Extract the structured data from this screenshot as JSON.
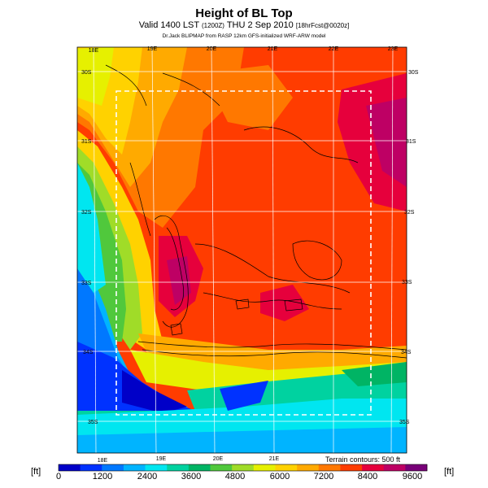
{
  "header": {
    "title": "Height of BL Top",
    "subtitle_main": "Valid 1400 LST",
    "subtitle_small1": "(1200Z)",
    "subtitle_mid": "THU 2 Sep 2010",
    "subtitle_small2": "[18hrFcst@0020z]",
    "credit": "Dr.Jack BLIPMAP from RASP 12km GFS-initialized WRF-ARW model"
  },
  "map": {
    "lon_top": [
      "18E",
      "19E",
      "20E",
      "21E",
      "22E",
      "23E"
    ],
    "lon_bottom": [
      "18E",
      "19E",
      "20E",
      "21E"
    ],
    "lat_left": [
      "30S",
      "31S",
      "32S",
      "33S",
      "34S",
      "35S"
    ],
    "lat_right": [
      "30S",
      "31S",
      "32S",
      "33S",
      "34S",
      "35S"
    ],
    "terrain_note": "Terrain contours: 500 ft"
  },
  "colorbar": {
    "unit_left": "[ft]",
    "unit_right": "[ft]",
    "labels": [
      "0",
      "1200",
      "2400",
      "3600",
      "4800",
      "6000",
      "7200",
      "8400",
      "9600"
    ],
    "colors": [
      "#0000c8",
      "#0032ff",
      "#0078ff",
      "#00b4ff",
      "#00e6f0",
      "#00d2a0",
      "#00b464",
      "#50c83c",
      "#a0dc28",
      "#e6f000",
      "#ffd200",
      "#ffaa00",
      "#ff7800",
      "#ff3c00",
      "#e6003c",
      "#be0064",
      "#780078"
    ]
  }
}
